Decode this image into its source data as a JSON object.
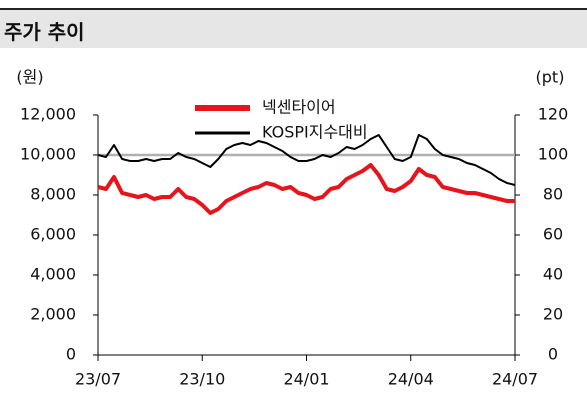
{
  "chart_data": {
    "type": "line",
    "title": "주가 추이",
    "y_label": "(원)",
    "y2_label": "(pt)",
    "categories": [
      "23/07",
      null,
      null,
      null,
      null,
      null,
      null,
      null,
      null,
      null,
      null,
      null,
      null,
      "23/10",
      null,
      null,
      null,
      null,
      null,
      null,
      null,
      null,
      null,
      null,
      null,
      null,
      "24/01",
      null,
      null,
      null,
      null,
      null,
      null,
      null,
      null,
      null,
      null,
      null,
      null,
      "24/04",
      null,
      null,
      null,
      null,
      null,
      null,
      null,
      null,
      null,
      null,
      null,
      null,
      "24/07"
    ],
    "series": [
      {
        "name": "넥센타이어",
        "color": "#e8141b",
        "values": [
          8400,
          8300,
          8900,
          8100,
          8000,
          7900,
          8000,
          7800,
          7900,
          7900,
          8300,
          7900,
          7800,
          7500,
          7100,
          7300,
          7700,
          7900,
          8100,
          8300,
          8400,
          8600,
          8500,
          8300,
          8400,
          8100,
          8000,
          7800,
          7900,
          8300,
          8400,
          8800,
          9000,
          9200,
          9500,
          9000,
          8300,
          8200,
          8400,
          8700,
          9300,
          9000,
          8900,
          8400,
          8300,
          8200,
          8100,
          8100,
          8000,
          7900,
          7800,
          7700,
          7700
        ]
      },
      {
        "name": "KOSPI지수대비",
        "color": "#000000",
        "axis": "y2",
        "values": [
          100,
          99,
          105,
          98,
          97,
          97,
          98,
          97,
          98,
          98,
          101,
          99,
          98,
          96,
          94,
          98,
          103,
          105,
          106,
          105,
          107,
          106,
          104,
          102,
          99,
          97,
          97,
          98,
          100,
          99,
          101,
          104,
          103,
          105,
          108,
          110,
          104,
          98,
          97,
          99,
          110,
          108,
          103,
          100,
          99,
          98,
          96,
          95,
          93,
          91,
          88,
          86,
          85
        ]
      }
    ],
    "ylim": [
      0,
      12000
    ],
    "yticks": [
      0,
      {
        "value": 2000,
        "label": "2,000"
      },
      {
        "value": 4000,
        "label": "4,000"
      },
      {
        "value": 6000,
        "label": "6,000"
      },
      {
        "value": 8000,
        "label": "8,000"
      },
      {
        "value": 10000,
        "label": "10,000"
      },
      {
        "value": 12000,
        "label": "12,000"
      }
    ],
    "y2lim": [
      0,
      120
    ],
    "y2ticks": [
      0,
      20,
      40,
      60,
      80,
      100,
      120
    ],
    "reference_line": {
      "value": 100,
      "axis": "y2",
      "color": "#b0b0b0"
    },
    "legend": "top"
  }
}
